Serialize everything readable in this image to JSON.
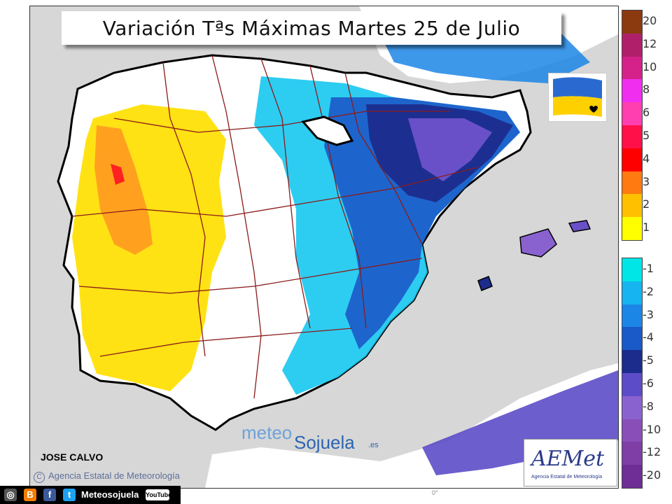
{
  "title": "Variación Tªs Máximas Martes 25 de Julio",
  "author": "JOSE CALVO",
  "agency_line": "Agencia Estatal de Meteorología",
  "copyright_symbol": "C",
  "brand": {
    "part1": "meteo",
    "part2": "Sojuela",
    "suffix": ".es"
  },
  "aemet": {
    "name": "AEMet",
    "subtitle": "Agencia Estatal de Meteorología"
  },
  "social": {
    "label": "Meteosojuela",
    "icons": [
      "instagram-icon",
      "blogger-icon",
      "facebook-icon",
      "twitter-icon"
    ],
    "youtube": "YouTube"
  },
  "degree_mark": "0°",
  "legend": {
    "positive": [
      {
        "label": "20",
        "color": "#8b3a10"
      },
      {
        "label": "12",
        "color": "#b0206a"
      },
      {
        "label": "10",
        "color": "#d4228a"
      },
      {
        "label": "8",
        "color": "#f02ef0"
      },
      {
        "label": "6",
        "color": "#ff3fb0"
      },
      {
        "label": "5",
        "color": "#ff1048"
      },
      {
        "label": "4",
        "color": "#ff0000"
      },
      {
        "label": "3",
        "color": "#ff7a10"
      },
      {
        "label": "2",
        "color": "#ffc000"
      },
      {
        "label": "1",
        "color": "#ffff00"
      }
    ],
    "negative": [
      {
        "label": "-1",
        "color": "#00e6e6"
      },
      {
        "label": "-2",
        "color": "#16b4f0"
      },
      {
        "label": "-3",
        "color": "#1c86e6"
      },
      {
        "label": "-4",
        "color": "#1a5ac8"
      },
      {
        "label": "-5",
        "color": "#1c2c8c"
      },
      {
        "label": "-6",
        "color": "#5c4cc8"
      },
      {
        "label": "-8",
        "color": "#8a62d0"
      },
      {
        "label": "-10",
        "color": "#8a4eb8"
      },
      {
        "label": "-12",
        "color": "#7e3ea6"
      },
      {
        "label": "-20",
        "color": "#6e2e96"
      }
    ]
  },
  "colors": {
    "land_white": "#ffffff",
    "border_red": "#8b1a1a",
    "coast": "#000000",
    "sea": "#d7d7d7"
  }
}
